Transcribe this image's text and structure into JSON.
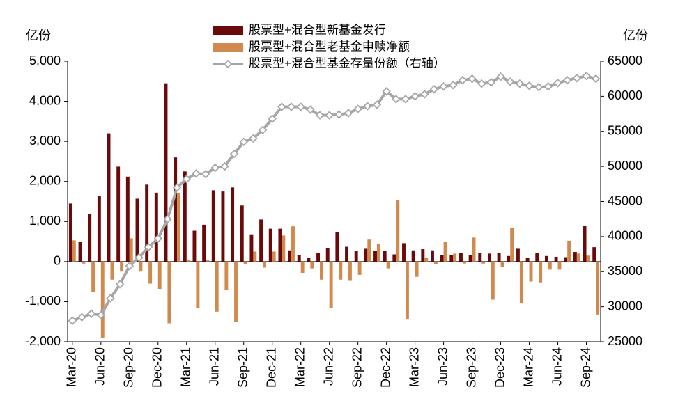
{
  "chart_data": {
    "type": "bar_line",
    "y_unit": "亿份",
    "y2_unit": "亿份",
    "categories": [
      "Mar-20",
      null,
      null,
      "Jun-20",
      null,
      null,
      "Sep-20",
      null,
      null,
      "Dec-20",
      null,
      null,
      "Mar-21",
      null,
      null,
      "Jun-21",
      null,
      null,
      "Sep-21",
      null,
      null,
      "Dec-21",
      null,
      null,
      "Mar-22",
      null,
      null,
      "Jun-22",
      null,
      null,
      "Sep-22",
      null,
      null,
      "Dec-22",
      null,
      null,
      "Mar-23",
      null,
      null,
      "Jun-23",
      null,
      null,
      "Sep-23",
      null,
      null,
      "Dec-23",
      null,
      null,
      "Mar-24",
      null,
      null,
      "Jun-24",
      null,
      null,
      "Sep-24",
      null
    ],
    "series": [
      {
        "name": "股票型+混合型新基金发行",
        "color": "#6b0a0a",
        "kind": "bar",
        "values": [
          1450,
          500,
          1180,
          1640,
          3200,
          2370,
          2120,
          1570,
          1920,
          1720,
          4450,
          2600,
          2250,
          770,
          920,
          1780,
          1750,
          1850,
          1400,
          680,
          1050,
          820,
          820,
          280,
          170,
          100,
          220,
          340,
          740,
          370,
          260,
          320,
          260,
          270,
          180,
          460,
          280,
          310,
          280,
          160,
          160,
          220,
          170,
          210,
          200,
          220,
          140,
          320,
          100,
          210,
          140,
          120,
          110,
          240,
          890,
          360
        ]
      },
      {
        "name": "股票型+混合型老基金申赎净额",
        "color": "#d08a4e",
        "kind": "bar",
        "values": [
          530,
          -50,
          -750,
          -1900,
          -450,
          -250,
          580,
          -250,
          -550,
          -680,
          -1540,
          1700,
          50,
          -1150,
          50,
          -1250,
          -700,
          -1500,
          -60,
          250,
          -150,
          250,
          650,
          880,
          -280,
          -170,
          -450,
          -1150,
          -450,
          -480,
          -330,
          550,
          450,
          -170,
          1540,
          -1430,
          -380,
          100,
          -60,
          500,
          200,
          -50,
          600,
          -50,
          -950,
          -130,
          840,
          -1030,
          -500,
          -520,
          -200,
          -200,
          520,
          200,
          150,
          -1320
        ]
      },
      {
        "name": "股票型+混合型基金存量份额（右轴）",
        "color": "#a6a6a6",
        "kind": "line",
        "axis": "y2",
        "values": [
          28000,
          28500,
          29000,
          28800,
          31200,
          33200,
          35800,
          37000,
          38500,
          39700,
          42500,
          47000,
          48200,
          49000,
          48900,
          49800,
          50000,
          51800,
          53500,
          54000,
          55200,
          56800,
          58500,
          58500,
          58500,
          58100,
          57300,
          57300,
          57400,
          57600,
          58200,
          58600,
          58800,
          60700,
          59600,
          59600,
          60000,
          60300,
          61000,
          61400,
          61600,
          62300,
          62500,
          61800,
          62000,
          62800,
          62100,
          61800,
          61500,
          61300,
          61400,
          61900,
          62300,
          62600,
          62900,
          62500
        ]
      }
    ],
    "ylim": [
      -2000,
      5000
    ],
    "yticks": [
      {
        "value": -2000,
        "label": "-2,000"
      },
      {
        "value": -1000,
        "label": "-1,000"
      },
      0,
      {
        "value": 1000,
        "label": "1,000"
      },
      {
        "value": 2000,
        "label": "2,000"
      },
      {
        "value": 3000,
        "label": "3,000"
      },
      {
        "value": 4000,
        "label": "4,000"
      },
      {
        "value": 5000,
        "label": "5,000"
      }
    ],
    "y2lim": [
      25000,
      65000
    ],
    "y2ticks": [
      25000,
      30000,
      35000,
      40000,
      45000,
      50000,
      55000,
      60000,
      65000
    ],
    "legend": "top"
  }
}
